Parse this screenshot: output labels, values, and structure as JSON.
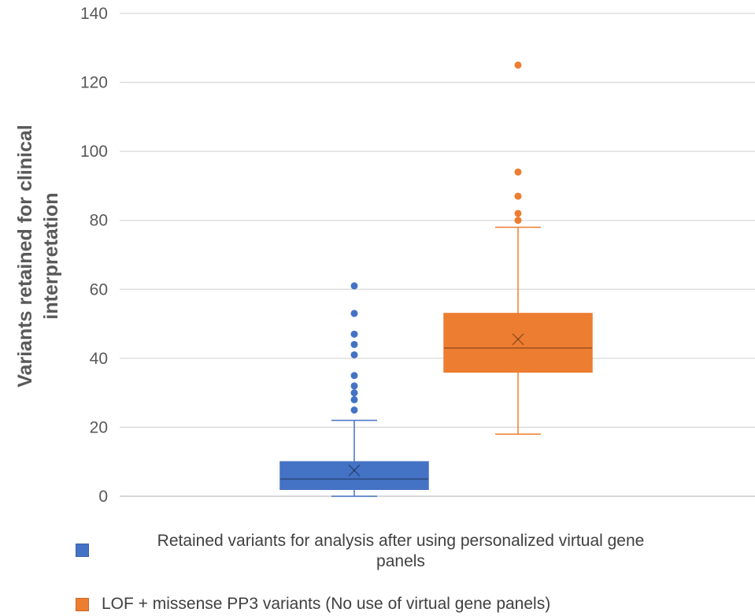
{
  "chart_data": {
    "type": "box",
    "ylabel_lines": [
      "Variants retained for clinical",
      "interpretation"
    ],
    "ylim": [
      0,
      140
    ],
    "yticks": [
      0,
      20,
      40,
      60,
      80,
      100,
      120,
      140
    ],
    "grid": true,
    "legend_position": "bottom",
    "series": [
      {
        "name": "Retained variants for analysis after using personalized virtual gene panels",
        "name_lines": [
          "Retained variants for analysis after using personalized virtual gene",
          "panels"
        ],
        "color": "#4472C4",
        "min": 0,
        "q1": 2,
        "median": 5,
        "q3": 10,
        "max": 22,
        "mean": 7.5,
        "outliers": [
          25,
          28,
          30,
          32,
          35,
          41,
          44,
          47,
          53,
          61
        ]
      },
      {
        "name": "LOF + missense PP3 variants (No use of virtual gene panels)",
        "name_lines": [
          "LOF + missense PP3 variants (No use of virtual gene panels)"
        ],
        "color": "#ED7D31",
        "min": 18,
        "q1": 36,
        "median": 43,
        "q3": 53,
        "max": 78,
        "mean": 45.5,
        "outliers": [
          80,
          82,
          87,
          94,
          125
        ]
      }
    ]
  }
}
